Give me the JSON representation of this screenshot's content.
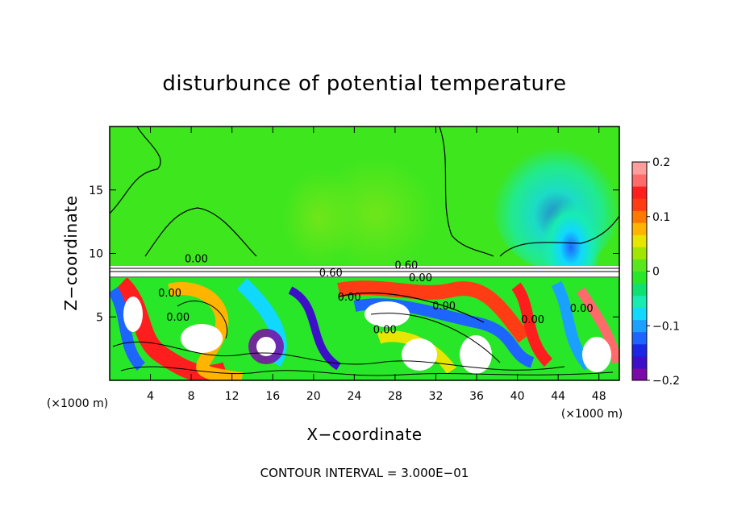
{
  "chart_data": {
    "type": "heatmap",
    "title": "disturbunce of potential temperature",
    "xlabel": "X−coordinate",
    "ylabel": "Z−coordinate",
    "x_unit": "(×1000 m)",
    "z_unit": "(×1000 m)",
    "xlim": [
      0,
      50
    ],
    "ylim": [
      0,
      20
    ],
    "x_ticks": [
      4,
      8,
      12,
      16,
      20,
      24,
      28,
      32,
      36,
      40,
      44,
      48
    ],
    "y_ticks": [
      5,
      10,
      15
    ],
    "contour_interval_note": "CONTOUR INTERVAL = 3.000E−01",
    "contour_labels": [
      {
        "text": "0.00",
        "x": 8.5,
        "z": 9.3
      },
      {
        "text": "0.60",
        "x": 21.7,
        "z": 8.2
      },
      {
        "text": "0.60",
        "x": 29.1,
        "z": 8.8
      },
      {
        "text": "0.00",
        "x": 30.5,
        "z": 7.8
      },
      {
        "text": "0.00",
        "x": 32.8,
        "z": 5.6
      },
      {
        "text": "0.00",
        "x": 23.5,
        "z": 6.3
      },
      {
        "text": "0.00",
        "x": 5.9,
        "z": 6.6
      },
      {
        "text": "0.00",
        "x": 6.7,
        "z": 4.7
      },
      {
        "text": "0.00",
        "x": 27.0,
        "z": 3.7
      },
      {
        "text": "0.00",
        "x": 41.5,
        "z": 4.5
      },
      {
        "text": "0.00",
        "x": 46.3,
        "z": 5.4
      }
    ],
    "colorbar": {
      "min": -0.2,
      "max": 0.2,
      "tick_labels": [
        {
          "value": 0.2,
          "label": "0.2"
        },
        {
          "value": 0.1,
          "label": "0.1"
        },
        {
          "value": 0.0,
          "label": "0"
        },
        {
          "value": -0.1,
          "label": "−0.1"
        },
        {
          "value": -0.2,
          "label": "−0.2"
        }
      ],
      "colors": [
        "#7b0aa8",
        "#3c0fc8",
        "#1a28e6",
        "#1e64ff",
        "#1aa0ff",
        "#10d8ff",
        "#18ecb0",
        "#10e070",
        "#28e628",
        "#5ae61c",
        "#a0e600",
        "#e6e600",
        "#ffb400",
        "#ff7800",
        "#ff3c14",
        "#ff1e1e",
        "#ff6a6a",
        "#ff9c9c"
      ]
    }
  }
}
